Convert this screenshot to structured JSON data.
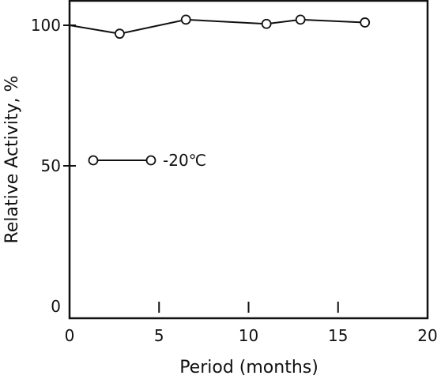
{
  "chart_data": {
    "type": "line",
    "xlabel": "Period (months)",
    "ylabel": "Relative Activity, %",
    "xlim": [
      0,
      20
    ],
    "ylim": [
      0,
      100
    ],
    "x_ticks": [
      0,
      5,
      10,
      15,
      20
    ],
    "x_tick_labels": [
      "0",
      "5",
      "10",
      "15",
      "20"
    ],
    "y_ticks": [
      0,
      50,
      100
    ],
    "y_tick_labels": [
      "0",
      "50",
      "100"
    ],
    "grid": false,
    "legend_position": "middle-left",
    "series": [
      {
        "name": "-20℃",
        "marker": "open-circle",
        "color": "#111111",
        "x": [
          0,
          2.8,
          6.5,
          11,
          12.9,
          16.5
        ],
        "y": [
          100,
          97,
          102,
          100.5,
          102,
          101
        ]
      }
    ]
  }
}
